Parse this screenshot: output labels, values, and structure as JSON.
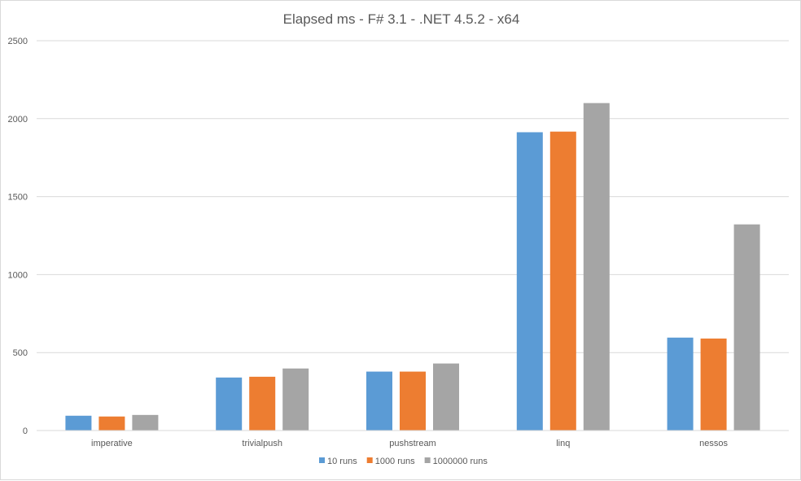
{
  "chart_data": {
    "type": "bar",
    "title": "Elapsed ms - F# 3.1 - .NET 4.5.2 - x64",
    "xlabel": "",
    "ylabel": "",
    "categories": [
      "imperative",
      "trivialpush",
      "pushstream",
      "linq",
      "nessos"
    ],
    "series": [
      {
        "name": "10 runs",
        "color": "#5b9bd5",
        "values": [
          95,
          340,
          378,
          1913,
          596
        ]
      },
      {
        "name": "1000 runs",
        "color": "#ed7d31",
        "values": [
          90,
          345,
          378,
          1917,
          590
        ]
      },
      {
        "name": "1000000 runs",
        "color": "#a5a5a5",
        "values": [
          100,
          398,
          430,
          2100,
          1322
        ]
      }
    ],
    "ylim": [
      0,
      2500
    ],
    "yticks": [
      0,
      500,
      1000,
      1500,
      2000,
      2500
    ],
    "grid": true,
    "legend_position": "bottom"
  }
}
